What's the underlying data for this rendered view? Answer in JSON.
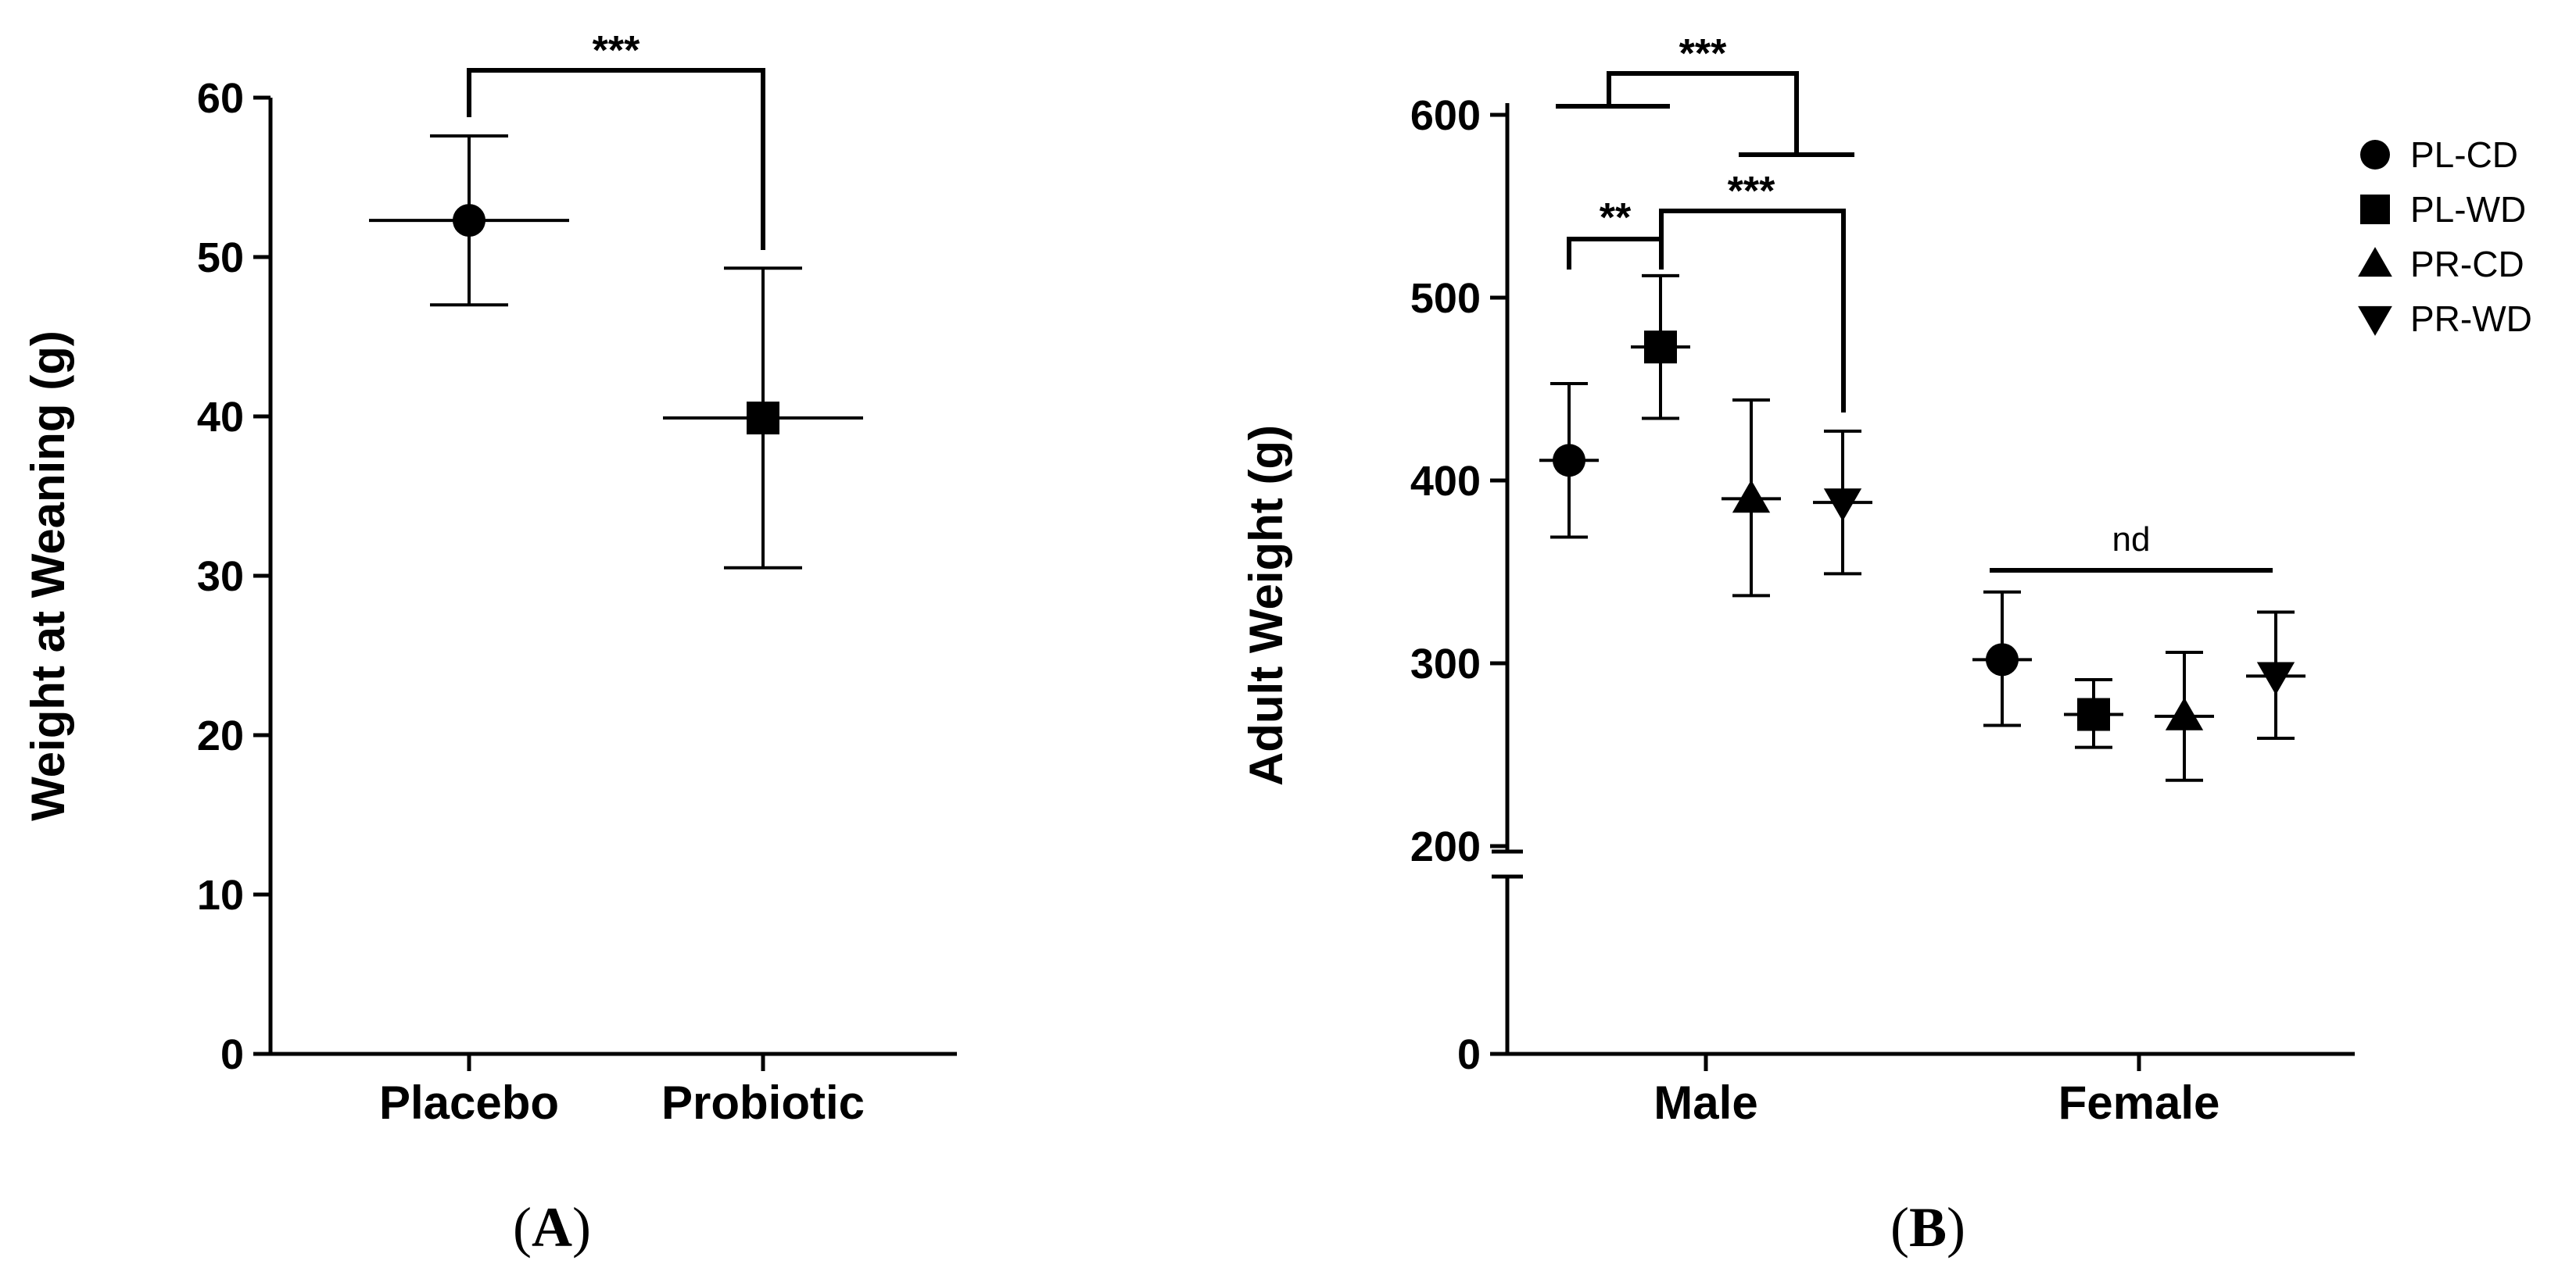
{
  "chart_data": [
    {
      "panel": "A",
      "type": "scatter",
      "title": "",
      "xlabel": "",
      "ylabel": "Weight at Weaning (g)",
      "ylim": [
        0,
        60
      ],
      "yticks": [
        0,
        10,
        20,
        30,
        40,
        50,
        60
      ],
      "categories": [
        "Placebo",
        "Probiotic"
      ],
      "points": [
        {
          "category": "Placebo",
          "marker": "circle",
          "mean": 52.3,
          "upper": 57.6,
          "lower": 47.0
        },
        {
          "category": "Probiotic",
          "marker": "square",
          "mean": 39.9,
          "upper": 49.3,
          "lower": 30.5
        }
      ],
      "significance": [
        {
          "from": "Placebo",
          "to": "Probiotic",
          "label": "***"
        }
      ],
      "panel_label": {
        "open": "(",
        "letter": "A",
        "close": ")"
      }
    },
    {
      "panel": "B",
      "type": "scatter",
      "title": "",
      "xlabel": "",
      "ylabel": "Adult Weight (g)",
      "ylim": [
        0,
        600
      ],
      "axis_break": [
        0,
        200
      ],
      "yticks": [
        0,
        200,
        300,
        400,
        500,
        600
      ],
      "categories": [
        "Male",
        "Female"
      ],
      "legend": {
        "position": "top-right",
        "entries": [
          {
            "label": "PL-CD",
            "marker": "circle"
          },
          {
            "label": "PL-WD",
            "marker": "square"
          },
          {
            "label": "PR-CD",
            "marker": "triangle-up"
          },
          {
            "label": "PR-WD",
            "marker": "triangle-down"
          }
        ]
      },
      "series": [
        {
          "name": "PL-CD",
          "marker": "circle",
          "values": [
            {
              "category": "Male",
              "mean": 411,
              "upper": 453,
              "lower": 369
            },
            {
              "category": "Female",
              "mean": 302,
              "upper": 339,
              "lower": 266
            }
          ]
        },
        {
          "name": "PL-WD",
          "marker": "square",
          "values": [
            {
              "category": "Male",
              "mean": 473,
              "upper": 512,
              "lower": 434
            },
            {
              "category": "Female",
              "mean": 272,
              "upper": 291,
              "lower": 254
            }
          ]
        },
        {
          "name": "PR-CD",
          "marker": "triangle-up",
          "values": [
            {
              "category": "Male",
              "mean": 390,
              "upper": 444,
              "lower": 337
            },
            {
              "category": "Female",
              "mean": 271,
              "upper": 306,
              "lower": 236
            }
          ]
        },
        {
          "name": "PR-WD",
          "marker": "triangle-down",
          "values": [
            {
              "category": "Male",
              "mean": 388,
              "upper": 427,
              "lower": 349
            },
            {
              "category": "Female",
              "mean": 293,
              "upper": 328,
              "lower": 259
            }
          ]
        }
      ],
      "significance": [
        {
          "label": "***",
          "description": "PL-CD/PL-WD vs PR-CD/PR-WD (Male)"
        },
        {
          "label": "**",
          "description": "PL-CD vs PL-WD (Male)"
        },
        {
          "label": "***",
          "description": "PL-WD vs PR-WD (Male)"
        },
        {
          "label": "nd",
          "description": "Female groups"
        }
      ],
      "panel_label": {
        "open": "(",
        "letter": "B",
        "close": ")"
      }
    }
  ]
}
